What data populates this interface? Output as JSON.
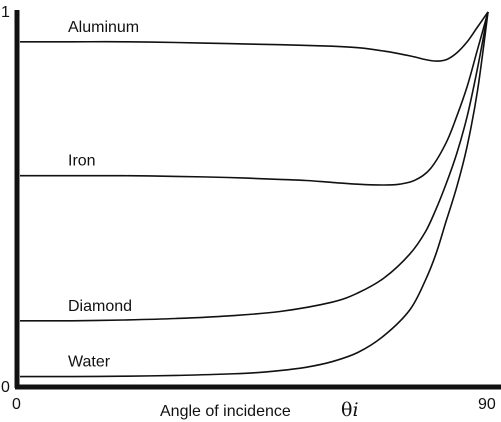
{
  "chart_data": {
    "type": "line",
    "xlabel": "Angle of incidence",
    "xlabel_symbol": "θ",
    "xlabel_subscript": "i",
    "xlim": [
      0,
      90
    ],
    "ylim": [
      0,
      1
    ],
    "x_ticks": [
      "0",
      "90"
    ],
    "y_ticks": [
      "0",
      "1"
    ],
    "grid": false,
    "series": [
      {
        "name": "Aluminum",
        "points": [
          [
            0,
            0.92
          ],
          [
            10,
            0.92
          ],
          [
            20,
            0.92
          ],
          [
            30,
            0.918
          ],
          [
            40,
            0.915
          ],
          [
            50,
            0.912
          ],
          [
            60,
            0.908
          ],
          [
            65,
            0.904
          ],
          [
            70,
            0.895
          ],
          [
            75,
            0.882
          ],
          [
            78,
            0.872
          ],
          [
            80,
            0.868
          ],
          [
            82,
            0.872
          ],
          [
            84,
            0.89
          ],
          [
            86,
            0.92
          ],
          [
            88,
            0.96
          ],
          [
            90,
            1.0
          ]
        ]
      },
      {
        "name": "Iron",
        "points": [
          [
            0,
            0.56
          ],
          [
            10,
            0.56
          ],
          [
            20,
            0.56
          ],
          [
            30,
            0.558
          ],
          [
            40,
            0.555
          ],
          [
            50,
            0.55
          ],
          [
            55,
            0.547
          ],
          [
            60,
            0.542
          ],
          [
            65,
            0.537
          ],
          [
            70,
            0.535
          ],
          [
            73,
            0.537
          ],
          [
            76,
            0.548
          ],
          [
            79,
            0.58
          ],
          [
            82,
            0.65
          ],
          [
            84,
            0.72
          ],
          [
            86,
            0.8
          ],
          [
            88,
            0.9
          ],
          [
            90,
            1.0
          ]
        ]
      },
      {
        "name": "Diamond",
        "points": [
          [
            0,
            0.17
          ],
          [
            10,
            0.17
          ],
          [
            20,
            0.172
          ],
          [
            30,
            0.176
          ],
          [
            40,
            0.183
          ],
          [
            50,
            0.195
          ],
          [
            60,
            0.22
          ],
          [
            65,
            0.245
          ],
          [
            70,
            0.285
          ],
          [
            75,
            0.35
          ],
          [
            78,
            0.41
          ],
          [
            80,
            0.47
          ],
          [
            82,
            0.54
          ],
          [
            84,
            0.62
          ],
          [
            86,
            0.72
          ],
          [
            88,
            0.85
          ],
          [
            90,
            1.0
          ]
        ]
      },
      {
        "name": "Water",
        "points": [
          [
            0,
            0.02
          ],
          [
            10,
            0.02
          ],
          [
            20,
            0.021
          ],
          [
            30,
            0.023
          ],
          [
            40,
            0.027
          ],
          [
            45,
            0.03
          ],
          [
            50,
            0.036
          ],
          [
            55,
            0.045
          ],
          [
            60,
            0.06
          ],
          [
            65,
            0.085
          ],
          [
            70,
            0.13
          ],
          [
            75,
            0.2
          ],
          [
            78,
            0.28
          ],
          [
            80,
            0.35
          ],
          [
            82,
            0.44
          ],
          [
            84,
            0.53
          ],
          [
            86,
            0.64
          ],
          [
            88,
            0.79
          ],
          [
            90,
            1.0
          ]
        ]
      }
    ]
  }
}
